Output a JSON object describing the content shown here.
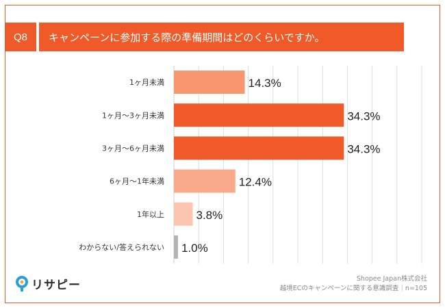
{
  "header": {
    "q_number": "Q8",
    "question": "キャンペーンに参加する際の準備期間はどのくらいですか。"
  },
  "chart_data": {
    "type": "bar",
    "orientation": "horizontal",
    "categories": [
      "1ヶ月未満",
      "1ヶ月〜3ヶ月未満",
      "3ヶ月〜6ヶ月未満",
      "6ヶ月〜1年未満",
      "1年以上",
      "わからない/答えられない"
    ],
    "values": [
      14.3,
      34.3,
      34.3,
      12.4,
      3.8,
      1.0
    ],
    "value_labels": [
      "14.3%",
      "34.3%",
      "34.3%",
      "12.4%",
      "3.8%",
      "1.0%"
    ],
    "bar_colors": [
      "#f7966f",
      "#f05a28",
      "#f05a28",
      "#f7a98a",
      "#fbc5b0",
      "#b3b3b3"
    ],
    "xlim": [
      0,
      50
    ],
    "grid": true
  },
  "footer": {
    "logo_text": "リサピー",
    "source_line1": "Shopee Japan株式会社",
    "source_line2": "越境ECのキャンペーンに関する意識調査｜n=105"
  },
  "colors": {
    "accent": "#f05a28"
  }
}
